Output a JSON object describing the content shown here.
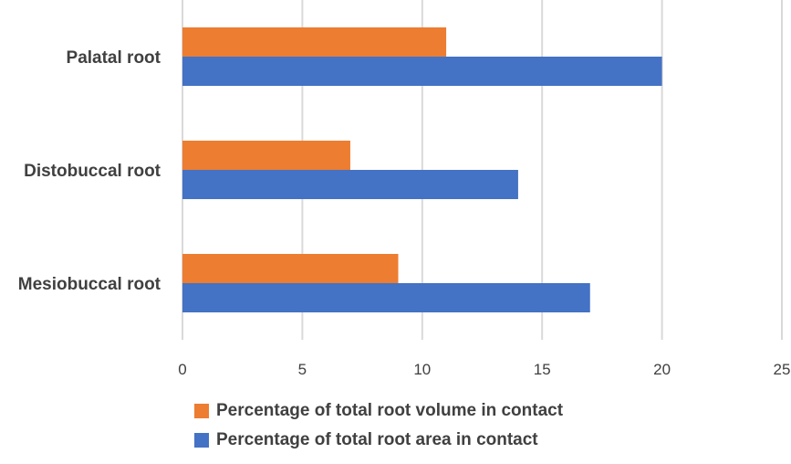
{
  "chart_data": {
    "type": "bar",
    "orientation": "horizontal",
    "categories": [
      "Mesiobuccal root",
      "Distobuccal root",
      "Palatal root"
    ],
    "series": [
      {
        "name": "Percentage of total root area in contact",
        "color": "#4472C4",
        "values": [
          17,
          14,
          20
        ]
      },
      {
        "name": "Percentage of total root volume in contact",
        "color": "#ED7D31",
        "values": [
          9,
          7,
          11
        ]
      }
    ],
    "xticks": [
      "0",
      "5",
      "10",
      "15",
      "20",
      "25"
    ],
    "xlim": [
      0,
      25
    ],
    "grid": true,
    "legend_position": "bottom",
    "legend_order": [
      1,
      0
    ]
  }
}
